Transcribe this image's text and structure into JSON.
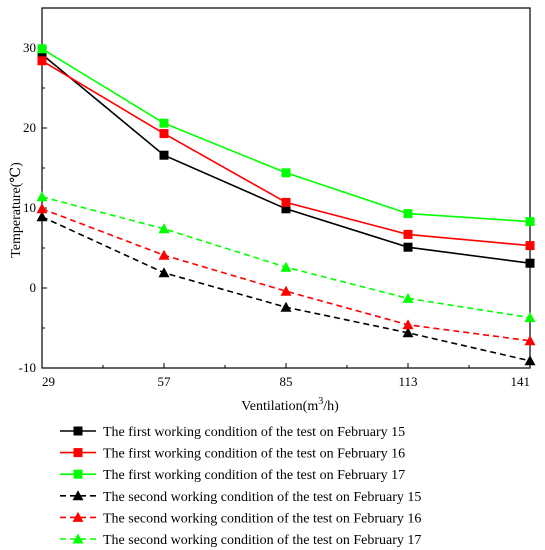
{
  "chart_data": {
    "type": "line",
    "title": "",
    "xlabel": "Ventilation(m",
    "xlabel_sup": "3",
    "xlabel_tail": "/h)",
    "ylabel": "Temperature(℃)",
    "x": [
      29,
      57,
      85,
      113,
      141
    ],
    "x_tick_labels": [
      "29",
      "57",
      "85",
      "113",
      "141"
    ],
    "xlim": [
      29,
      141
    ],
    "ylim": [
      -10,
      35
    ],
    "y_tick_values": [
      -10,
      0,
      10,
      20,
      30
    ],
    "y_tick_labels": [
      "-10",
      "0",
      "10",
      "20",
      "30"
    ],
    "grid": false,
    "legend_placement": "bottom",
    "series": [
      {
        "name": "The first working condition of the test on February 15",
        "values": [
          29.2,
          16.6,
          9.9,
          5.1,
          3.1
        ],
        "color": "#000000",
        "marker": "square",
        "dashed": false
      },
      {
        "name": "The first working condition of the test on February 16",
        "values": [
          28.4,
          19.3,
          10.7,
          6.7,
          5.3
        ],
        "color": "#ff0000",
        "marker": "square",
        "dashed": false
      },
      {
        "name": "The first working condition of the test on February 17",
        "values": [
          29.9,
          20.6,
          14.4,
          9.3,
          8.3
        ],
        "color": "#00ff00",
        "marker": "square",
        "dashed": false
      },
      {
        "name": "The second working condition of the test on February 15",
        "values": [
          8.9,
          1.9,
          -2.4,
          -5.6,
          -9.1
        ],
        "color": "#000000",
        "marker": "triangle",
        "dashed": true
      },
      {
        "name": "The second working condition of the test on February 16",
        "values": [
          9.9,
          4.1,
          -0.4,
          -4.6,
          -6.6
        ],
        "color": "#ff0000",
        "marker": "triangle",
        "dashed": true
      },
      {
        "name": "The second working condition of the test on February 17",
        "values": [
          11.4,
          7.4,
          2.6,
          -1.3,
          -3.7
        ],
        "color": "#00ff00",
        "marker": "triangle",
        "dashed": true
      }
    ]
  }
}
